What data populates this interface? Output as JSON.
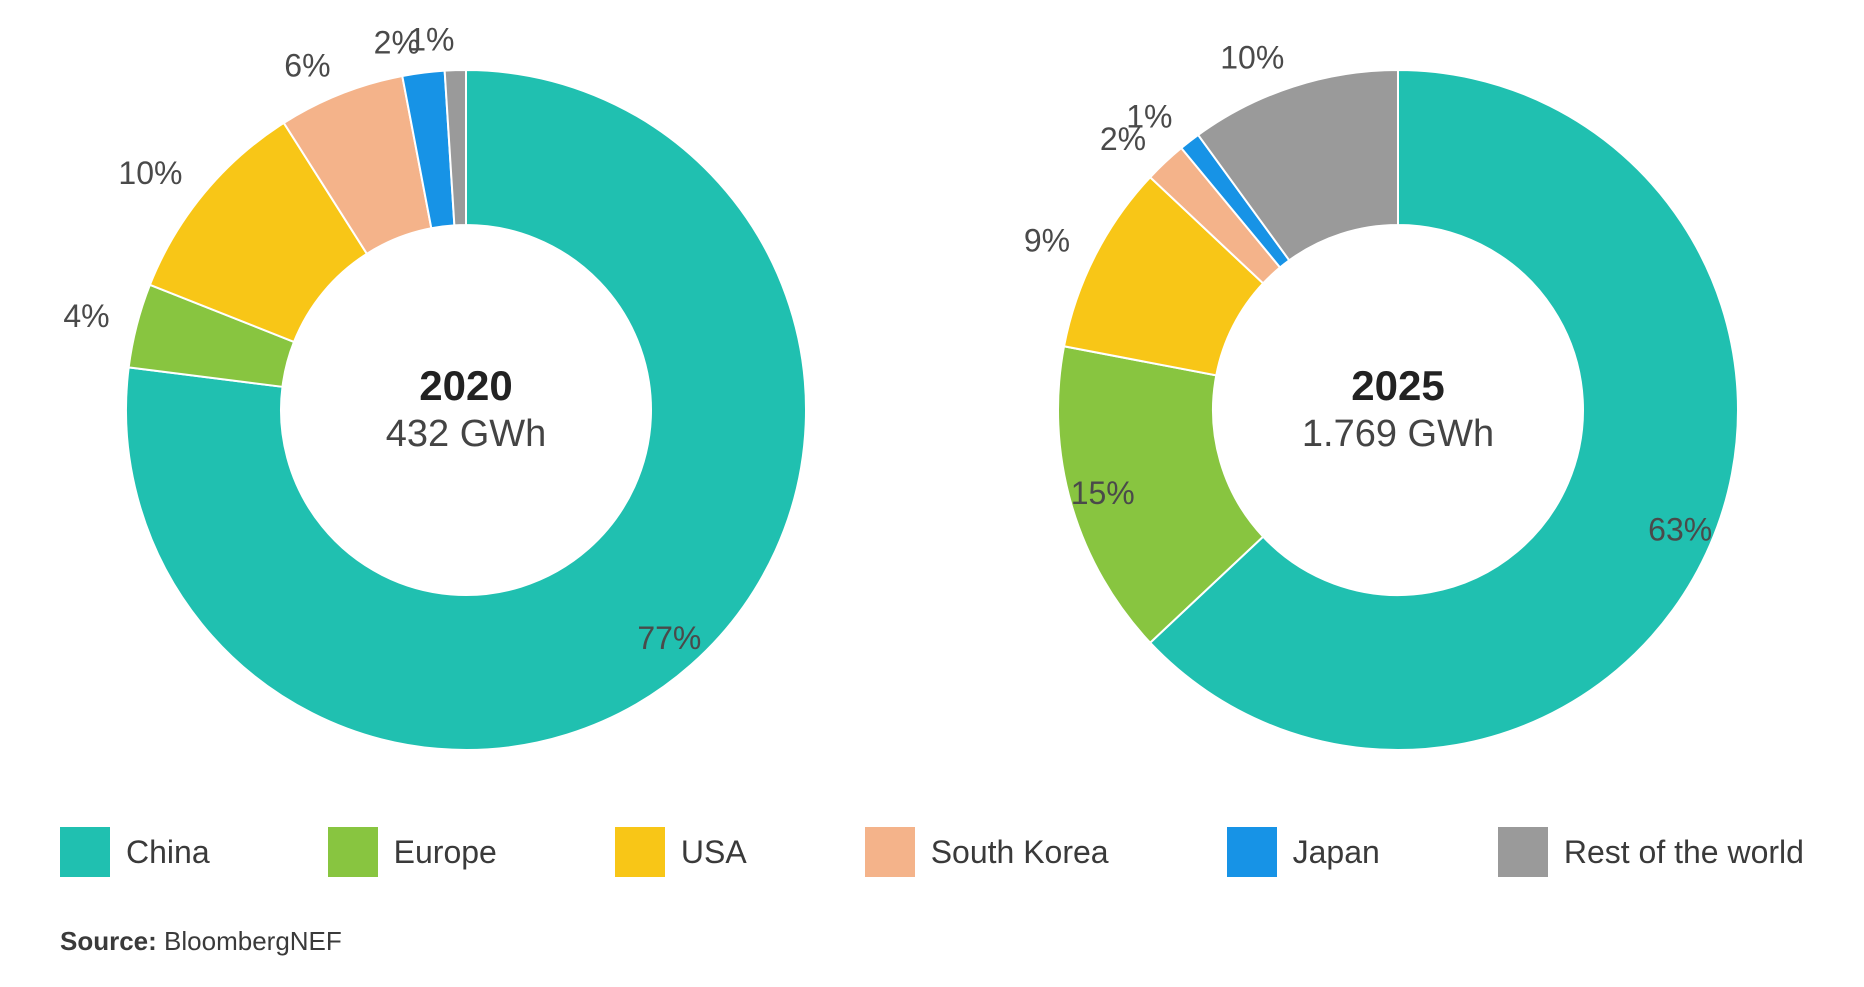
{
  "type": "donut-chart-comparison",
  "background_color": "#ffffff",
  "text_color": "#3a3a3a",
  "font_family": "Verdana, Geneva, sans-serif",
  "label_fontsize": 32,
  "center_year_fontsize": 42,
  "center_value_fontsize": 38,
  "legend_fontsize": 32,
  "source_fontsize": 26,
  "donut": {
    "outer_radius": 340,
    "inner_radius": 185,
    "gap_color": "#ffffff",
    "gap_width": 2,
    "start_angle_deg": 0
  },
  "categories": [
    {
      "name": "China",
      "color": "#20c0b0"
    },
    {
      "name": "Europe",
      "color": "#88c540"
    },
    {
      "name": "USA",
      "color": "#f8c617"
    },
    {
      "name": "South Korea",
      "color": "#f4b38a"
    },
    {
      "name": "Japan",
      "color": "#1793e6"
    },
    {
      "name": "Rest of the world",
      "color": "#9a9a9a"
    }
  ],
  "charts": [
    {
      "id": "chart-2020",
      "year": "2020",
      "value": "432 GWh",
      "slices": [
        {
          "category": "China",
          "percent": 77,
          "label": "77%"
        },
        {
          "category": "Europe",
          "percent": 4,
          "label": "4%"
        },
        {
          "category": "USA",
          "percent": 10,
          "label": "10%"
        },
        {
          "category": "South Korea",
          "percent": 6,
          "label": "6%"
        },
        {
          "category": "Japan",
          "percent": 2,
          "label": "2%"
        },
        {
          "category": "Rest of the world",
          "percent": 1,
          "label": "1%"
        }
      ]
    },
    {
      "id": "chart-2025",
      "year": "2025",
      "value": "1.769 GWh",
      "slices": [
        {
          "category": "China",
          "percent": 63,
          "label": "63%"
        },
        {
          "category": "Europe",
          "percent": 15,
          "label": "15%"
        },
        {
          "category": "USA",
          "percent": 9,
          "label": "9%"
        },
        {
          "category": "South Korea",
          "percent": 2,
          "label": "2%"
        },
        {
          "category": "Japan",
          "percent": 1,
          "label": "1%"
        },
        {
          "category": "Rest of the world",
          "percent": 10,
          "label": "10%"
        }
      ]
    }
  ],
  "source_label": "Source:",
  "source_text": "BloombergNEF"
}
